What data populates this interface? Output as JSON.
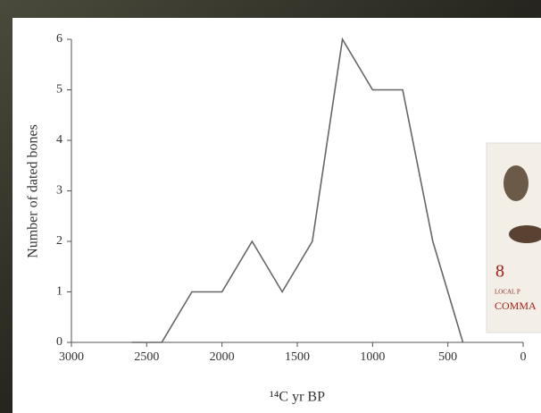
{
  "chart_data": {
    "type": "line",
    "y_label": "Number of dated bones",
    "x_label": "¹⁴C yr BP",
    "x": [
      2600,
      2400,
      2200,
      2000,
      1800,
      1600,
      1400,
      1200,
      1000,
      800,
      600,
      400
    ],
    "values": [
      0,
      0,
      1,
      1,
      2,
      1,
      2,
      6,
      5,
      5,
      2,
      0
    ],
    "color": "#666666",
    "xlim": [
      3000,
      0
    ],
    "xticks": [
      3000,
      2500,
      2000,
      1500,
      1000,
      500,
      0
    ],
    "ylim": [
      0,
      6
    ],
    "yticks": [
      0,
      1,
      2,
      3,
      4,
      5,
      6
    ]
  },
  "stamp": {
    "number": "8",
    "line1": "LOCAL P",
    "line2": "COMMA"
  }
}
